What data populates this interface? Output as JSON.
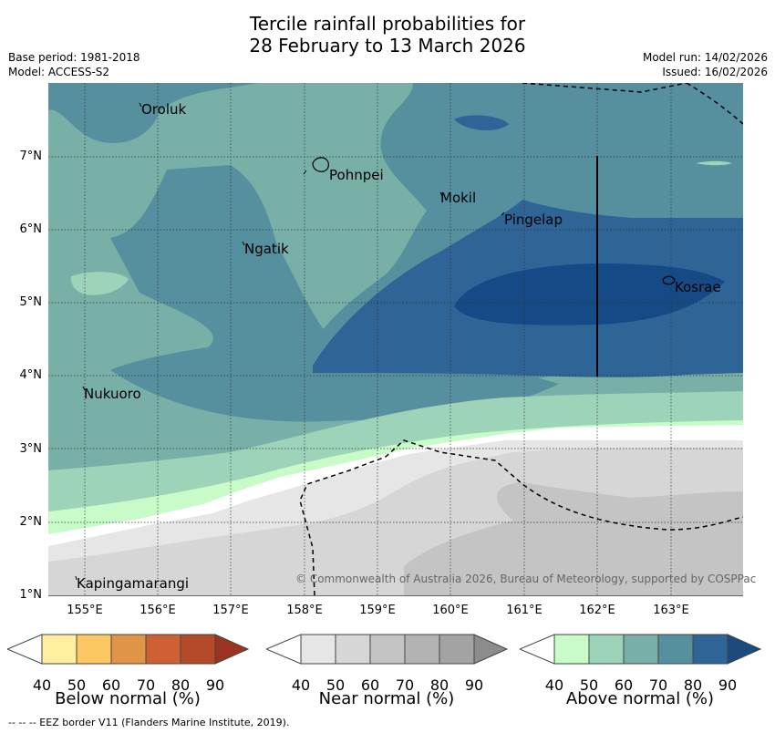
{
  "title_line1": "Tercile rainfall probabilities for",
  "title_line2": "28 February to 13 March 2026",
  "base_period": "Base period: 1981-2018",
  "model": "Model: ACCESS-S2",
  "model_run": "Model run: 14/02/2026",
  "issued": "Issued: 16/02/2026",
  "lat_labels": [
    "7°N",
    "6°N",
    "5°N",
    "4°N",
    "3°N",
    "2°N",
    "1°N"
  ],
  "lon_labels": [
    "155°E",
    "156°E",
    "157°E",
    "158°E",
    "159°E",
    "160°E",
    "161°E",
    "162°E",
    "163°E"
  ],
  "places": {
    "oroluk": "Oroluk",
    "pohnpei": "Pohnpei",
    "mokil": "Mokil",
    "pingelap": "Pingelap",
    "ngatik": "Ngatik",
    "kosrae": "Kosrae",
    "nukuoro": "Nukuoro",
    "kapingamarangi": "Kapingamarangi"
  },
  "copyright": "© Commonwealth of Australia 2026, Bureau of Meteorology, supported by COSPPac",
  "colorbars": {
    "ticks": [
      "40",
      "50",
      "60",
      "70",
      "80",
      "90"
    ],
    "below": {
      "title": "Below normal (%)",
      "colors": [
        "#fef0a0",
        "#fdc864",
        "#e09448",
        "#cf6033",
        "#b5492a",
        "#9a3420"
      ]
    },
    "near": {
      "title": "Near normal (%)",
      "colors": [
        "#e6e6e6",
        "#d6d6d6",
        "#c4c4c4",
        "#b3b3b3",
        "#a3a3a3",
        "#8c8c8c"
      ]
    },
    "above": {
      "title": "Above normal (%)",
      "colors": [
        "#c9fbc9",
        "#9dd3b9",
        "#78b0a8",
        "#56909e",
        "#2f6497",
        "#1a4a80"
      ]
    }
  },
  "eez_note": "--  --  -- EEZ border V11 (Flanders Marine Institute, 2019)."
}
